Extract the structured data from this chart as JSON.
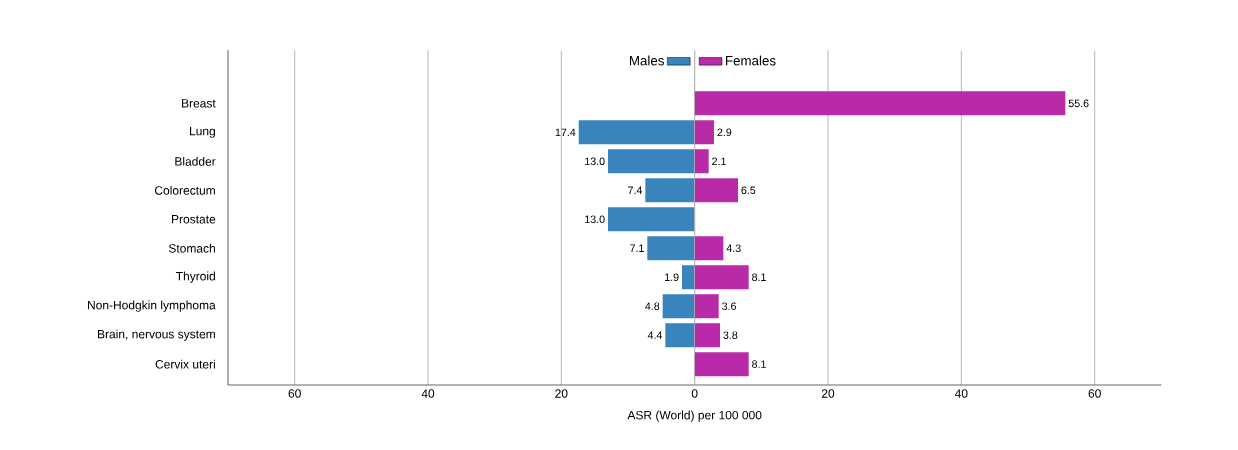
{
  "chart_data": [
    {
      "type": "bar",
      "orientation": "horizontal",
      "categories": [
        "Breast",
        "Lung",
        "Bladder",
        "Colorectum",
        "Prostate",
        "Stomach",
        "Thyroid",
        "Non-Hodgkin lymphoma",
        "Brain, nervous system",
        "Cervix uteri"
      ],
      "series": [
        {
          "name": "Males",
          "color": "#3a84be",
          "values": [
            null,
            17.4,
            13.0,
            7.4,
            13.0,
            7.1,
            1.9,
            4.8,
            4.4,
            null
          ],
          "value_labels": [
            null,
            "17.4",
            "13.0",
            "7.4",
            "13.0",
            "7.1",
            "1.9",
            "4.8",
            "4.4",
            null
          ]
        }
      ],
      "xlim": [
        70,
        0
      ],
      "xticks": [
        60,
        40,
        20
      ],
      "grid": "x",
      "legend": "top right"
    },
    {
      "type": "bar",
      "orientation": "horizontal",
      "xlabel": "ASR (World) per 100 000",
      "categories": [
        null,
        null,
        null,
        null,
        null,
        null,
        null,
        null,
        null,
        null
      ],
      "series": [
        {
          "name": "Females",
          "color": "#b82aa8",
          "values": [
            55.6,
            2.9,
            2.1,
            6.5,
            null,
            4.3,
            8.1,
            3.6,
            3.8,
            8.1
          ],
          "value_labels": [
            "55.6",
            "2.9",
            "2.1",
            "6.5",
            null,
            "4.3",
            "8.1",
            "3.6",
            "3.8",
            "8.1"
          ]
        }
      ],
      "xlim": [
        0,
        70
      ],
      "xticks": [
        0,
        20,
        40,
        60
      ],
      "grid": "x",
      "legend": "top left",
      "tick_labels": "x"
    }
  ]
}
